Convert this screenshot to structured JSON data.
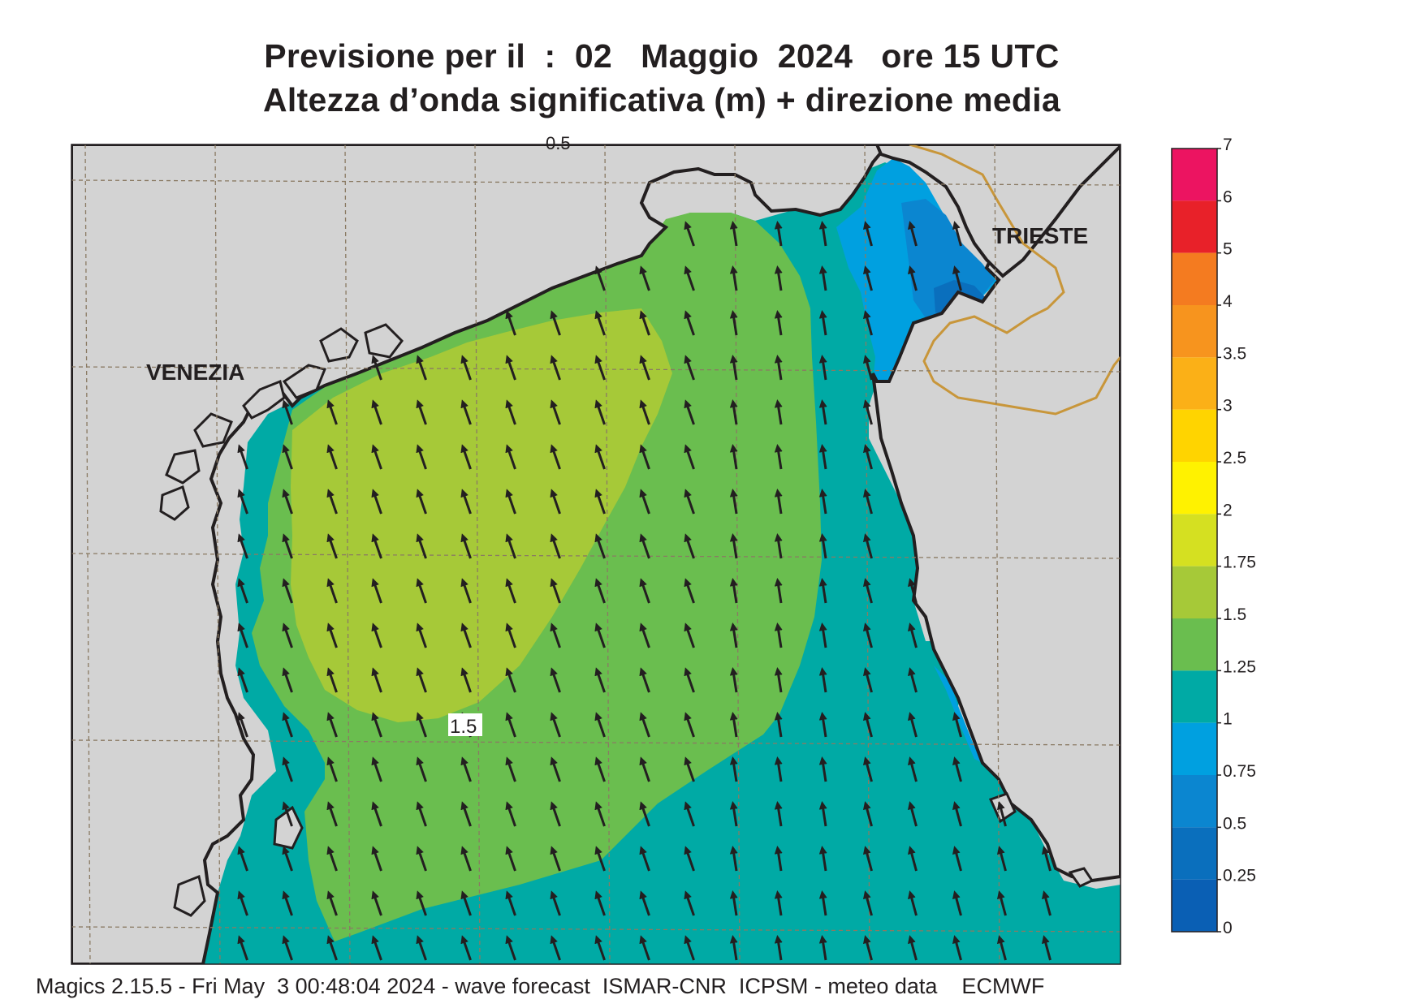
{
  "title": {
    "line1": "Previsione per il  :  02   Maggio  2024   ore 15 UTC",
    "line2": "Altezza d’onda significativa (m) + direzione media"
  },
  "map": {
    "place_labels": [
      "VENEZIA",
      "TRIESTE"
    ],
    "contour_labels": [
      "1.5",
      "0.5"
    ],
    "land_color": "#d3d3d3",
    "coast_color": "#231f20",
    "border_color": "#c8963a",
    "arrow_color": "#231f20",
    "zones": {
      "sea_1_125": "#00aaa5",
      "sea_125_15": "#6abe4f",
      "sea_15_175": "#a6c938",
      "sea_075_1": "#00a0e0",
      "sea_05_075": "#0b86d0",
      "sea_025_05": "#0a6fbd"
    },
    "mean_wave_direction": "N-NW"
  },
  "legend": {
    "ticks": [
      "7",
      "6",
      "5",
      "4",
      "3.5",
      "3",
      "2.5",
      "2",
      "1.75",
      "1.5",
      "1.25",
      "1",
      "0.75",
      "0.5",
      "0.25",
      "0"
    ],
    "colors": [
      "#ec1461",
      "#e82129",
      "#f47b20",
      "#f7941e",
      "#fbb017",
      "#ffd400",
      "#fff200",
      "#d5e021",
      "#a6c938",
      "#6abe4f",
      "#00aaa5",
      "#00a0e0",
      "#0b86d0",
      "#0a6fbd",
      "#0a5fb4"
    ]
  },
  "footer": "Magics 2.15.5 - Fri May  3 00:48:04 2024 - wave forecast  ISMAR-CNR  ICPSM - meteo data    ECMWF"
}
